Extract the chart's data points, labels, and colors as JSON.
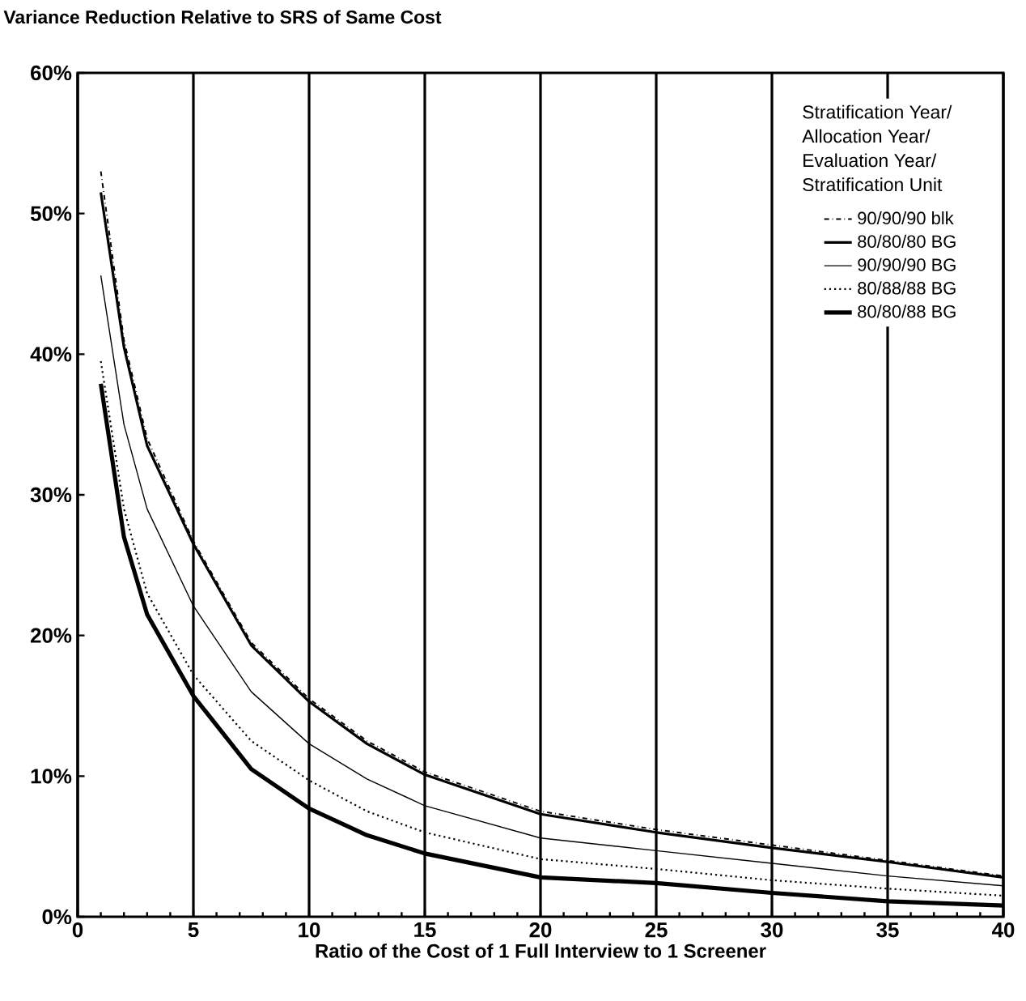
{
  "chart_data": {
    "type": "line",
    "title": "Variance Reduction Relative to SRS of Same Cost",
    "xlabel": "Ratio of the Cost of 1 Full Interview to 1 Screener",
    "legend_title": "Stratification Year/ Allocation Year/ Evaluation Year/ Stratification Unit",
    "x": [
      1,
      2,
      3,
      5,
      7.5,
      10,
      12.5,
      15,
      20,
      25,
      30,
      35,
      40
    ],
    "series": [
      {
        "name": "90/90/90 blk",
        "color": "#000000",
        "line_style": "dashed",
        "values": [
          53,
          41,
          34,
          26.7,
          19.5,
          15.5,
          12.5,
          10.3,
          7.5,
          6.2,
          5.1,
          4.0,
          2.9
        ]
      },
      {
        "name": "80/80/80 BG",
        "color": "#000000",
        "line_style": "solid",
        "values": [
          51.5,
          40.5,
          33.5,
          26.5,
          19.3,
          15.3,
          12.3,
          10.1,
          7.3,
          6.0,
          4.9,
          3.9,
          2.8
        ]
      },
      {
        "name": "90/90/90 BG",
        "color": "#000000",
        "line_style": "solid",
        "values": [
          45.6,
          35,
          29,
          22.1,
          16,
          12.3,
          9.8,
          7.9,
          5.6,
          4.7,
          3.8,
          2.9,
          2.2
        ]
      },
      {
        "name": "80/88/88 BG",
        "color": "#000000",
        "line_style": "dotted",
        "values": [
          39.5,
          29,
          23,
          17.2,
          12.5,
          9.7,
          7.5,
          6.0,
          4.1,
          3.4,
          2.6,
          2.0,
          1.5
        ]
      },
      {
        "name": "80/80/88 BG",
        "color": "#000000",
        "line_style": "solid",
        "values": [
          37.9,
          27,
          21.5,
          15.7,
          10.5,
          7.7,
          5.8,
          4.5,
          2.8,
          2.4,
          1.7,
          1.1,
          0.8
        ]
      }
    ],
    "xlim": [
      0,
      40
    ],
    "xticks": [
      0,
      5,
      10,
      15,
      20,
      25,
      30,
      35,
      40
    ],
    "ylim": [
      0,
      60
    ],
    "yticks": [
      {
        "value": 0,
        "label": "0%"
      },
      {
        "value": 10,
        "label": "10%"
      },
      {
        "value": 20,
        "label": "20%"
      },
      {
        "value": 30,
        "label": "30%"
      },
      {
        "value": 40,
        "label": "40%"
      },
      {
        "value": 50,
        "label": "50%"
      },
      {
        "value": 60,
        "label": "60%"
      }
    ],
    "grid": "x",
    "legend": "top right",
    "marker": "none"
  }
}
